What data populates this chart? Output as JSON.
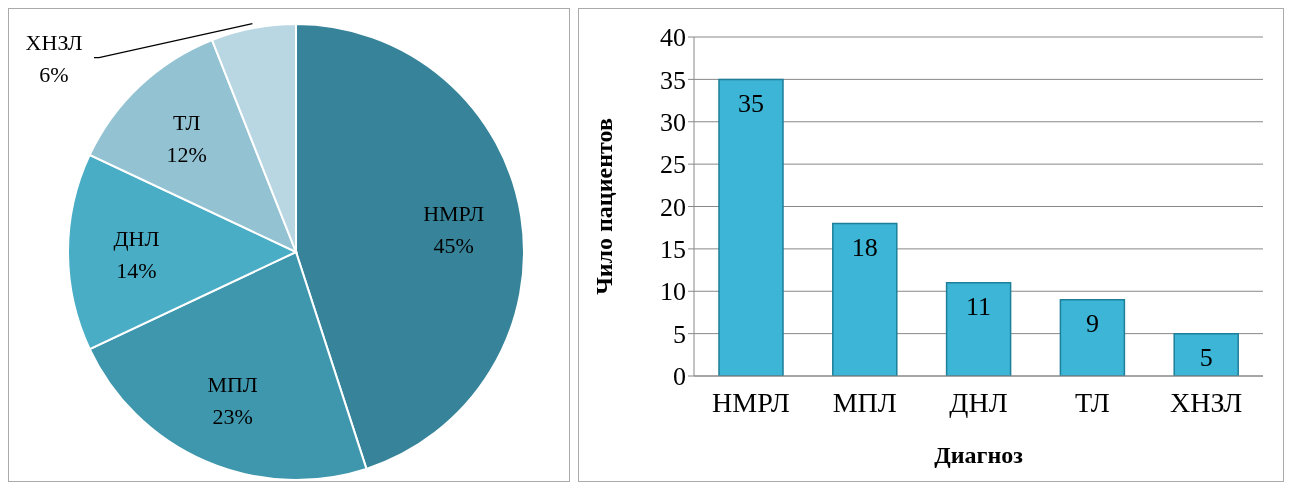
{
  "chart_data": [
    {
      "type": "pie",
      "categories": [
        "НМРЛ",
        "МПЛ",
        "ДНЛ",
        "ТЛ",
        "ХНЗЛ"
      ],
      "values": [
        45,
        23,
        14,
        12,
        6
      ],
      "value_labels": [
        "45%",
        "23%",
        "14%",
        "12%",
        "6%"
      ],
      "colors": [
        "#37849a",
        "#3f97ad",
        "#4aadc6",
        "#93c3d3",
        "#b9d7e3"
      ]
    },
    {
      "type": "bar",
      "categories": [
        "НМРЛ",
        "МПЛ",
        "ДНЛ",
        "ТЛ",
        "ХНЗЛ"
      ],
      "values": [
        35,
        18,
        11,
        9,
        5
      ],
      "color": "#3cb5d6",
      "ylim": [
        0,
        40
      ],
      "yticks": [
        0,
        5,
        10,
        15,
        20,
        25,
        30,
        35,
        40
      ],
      "grid": "y",
      "data_labels": true,
      "xlabel": "Диагноз",
      "ylabel": "Чило пациентов"
    }
  ]
}
